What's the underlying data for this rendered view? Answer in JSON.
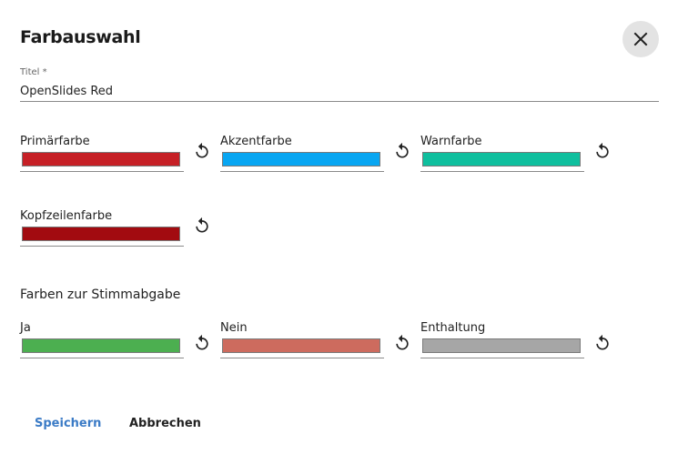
{
  "dialog": {
    "title": "Farbauswahl",
    "close_icon": "close-icon"
  },
  "title_field": {
    "label": "Titel *",
    "value": "OpenSlides Red"
  },
  "theme_colors": [
    {
      "label": "Primärfarbe",
      "color": "#c62026"
    },
    {
      "label": "Akzentfarbe",
      "color": "#08a6f2"
    },
    {
      "label": "Warnfarbe",
      "color": "#0fbf9e"
    },
    {
      "label": "Kopfzeilenfarbe",
      "color": "#a20b10"
    }
  ],
  "vote_section": {
    "heading": "Farben zur Stimmabgabe",
    "colors": [
      {
        "label": "Ja",
        "color": "#4caf50"
      },
      {
        "label": "Nein",
        "color": "#cd6b5e"
      },
      {
        "label": "Enthaltung",
        "color": "#a6a6a6"
      }
    ]
  },
  "reset_icon": "reset-icon",
  "actions": {
    "save_label": "Speichern",
    "save_color": "#3b7bc6",
    "cancel_label": "Abbrechen"
  }
}
